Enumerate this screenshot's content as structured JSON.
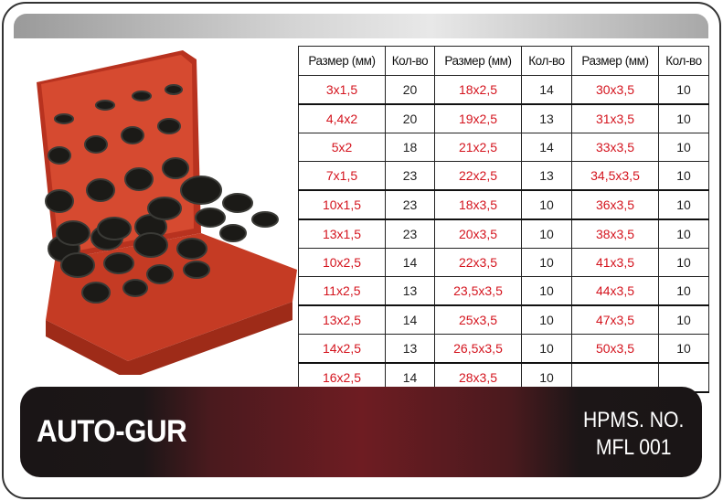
{
  "table": {
    "headers": [
      "Размер (мм)",
      "Кол-во",
      "Размер (мм)",
      "Кол-во",
      "Размер (мм)",
      "Кол-во"
    ],
    "rows": [
      [
        "3x1,5",
        "20",
        "18x2,5",
        "14",
        "30x3,5",
        "10"
      ],
      [
        "4,4x2",
        "20",
        "19x2,5",
        "13",
        "31x3,5",
        "10"
      ],
      [
        "5x2",
        "18",
        "21x2,5",
        "14",
        "33x3,5",
        "10"
      ],
      [
        "7x1,5",
        "23",
        "22x2,5",
        "13",
        "34,5x3,5",
        "10"
      ],
      [
        "10x1,5",
        "23",
        "18x3,5",
        "10",
        "36x3,5",
        "10"
      ],
      [
        "13x1,5",
        "23",
        "20x3,5",
        "10",
        "38x3,5",
        "10"
      ],
      [
        "10x2,5",
        "14",
        "22x3,5",
        "10",
        "41x3,5",
        "10"
      ],
      [
        "11x2,5",
        "13",
        "23,5x3,5",
        "10",
        "44x3,5",
        "10"
      ],
      [
        "13x2,5",
        "14",
        "25x3,5",
        "10",
        "47x3,5",
        "10"
      ],
      [
        "14x2,5",
        "13",
        "26,5x3,5",
        "10",
        "50x3,5",
        "10"
      ],
      [
        "16x2,5",
        "14",
        "28x3,5",
        "10",
        "",
        ""
      ]
    ]
  },
  "footer": {
    "brand": "AUTO-GUR",
    "part_label": "HPMS. NO.",
    "part_number": "MFL 001"
  },
  "colors": {
    "size_text": "#d4141e",
    "case_red": "#c9442c",
    "footer_red": "#6e1c22"
  }
}
